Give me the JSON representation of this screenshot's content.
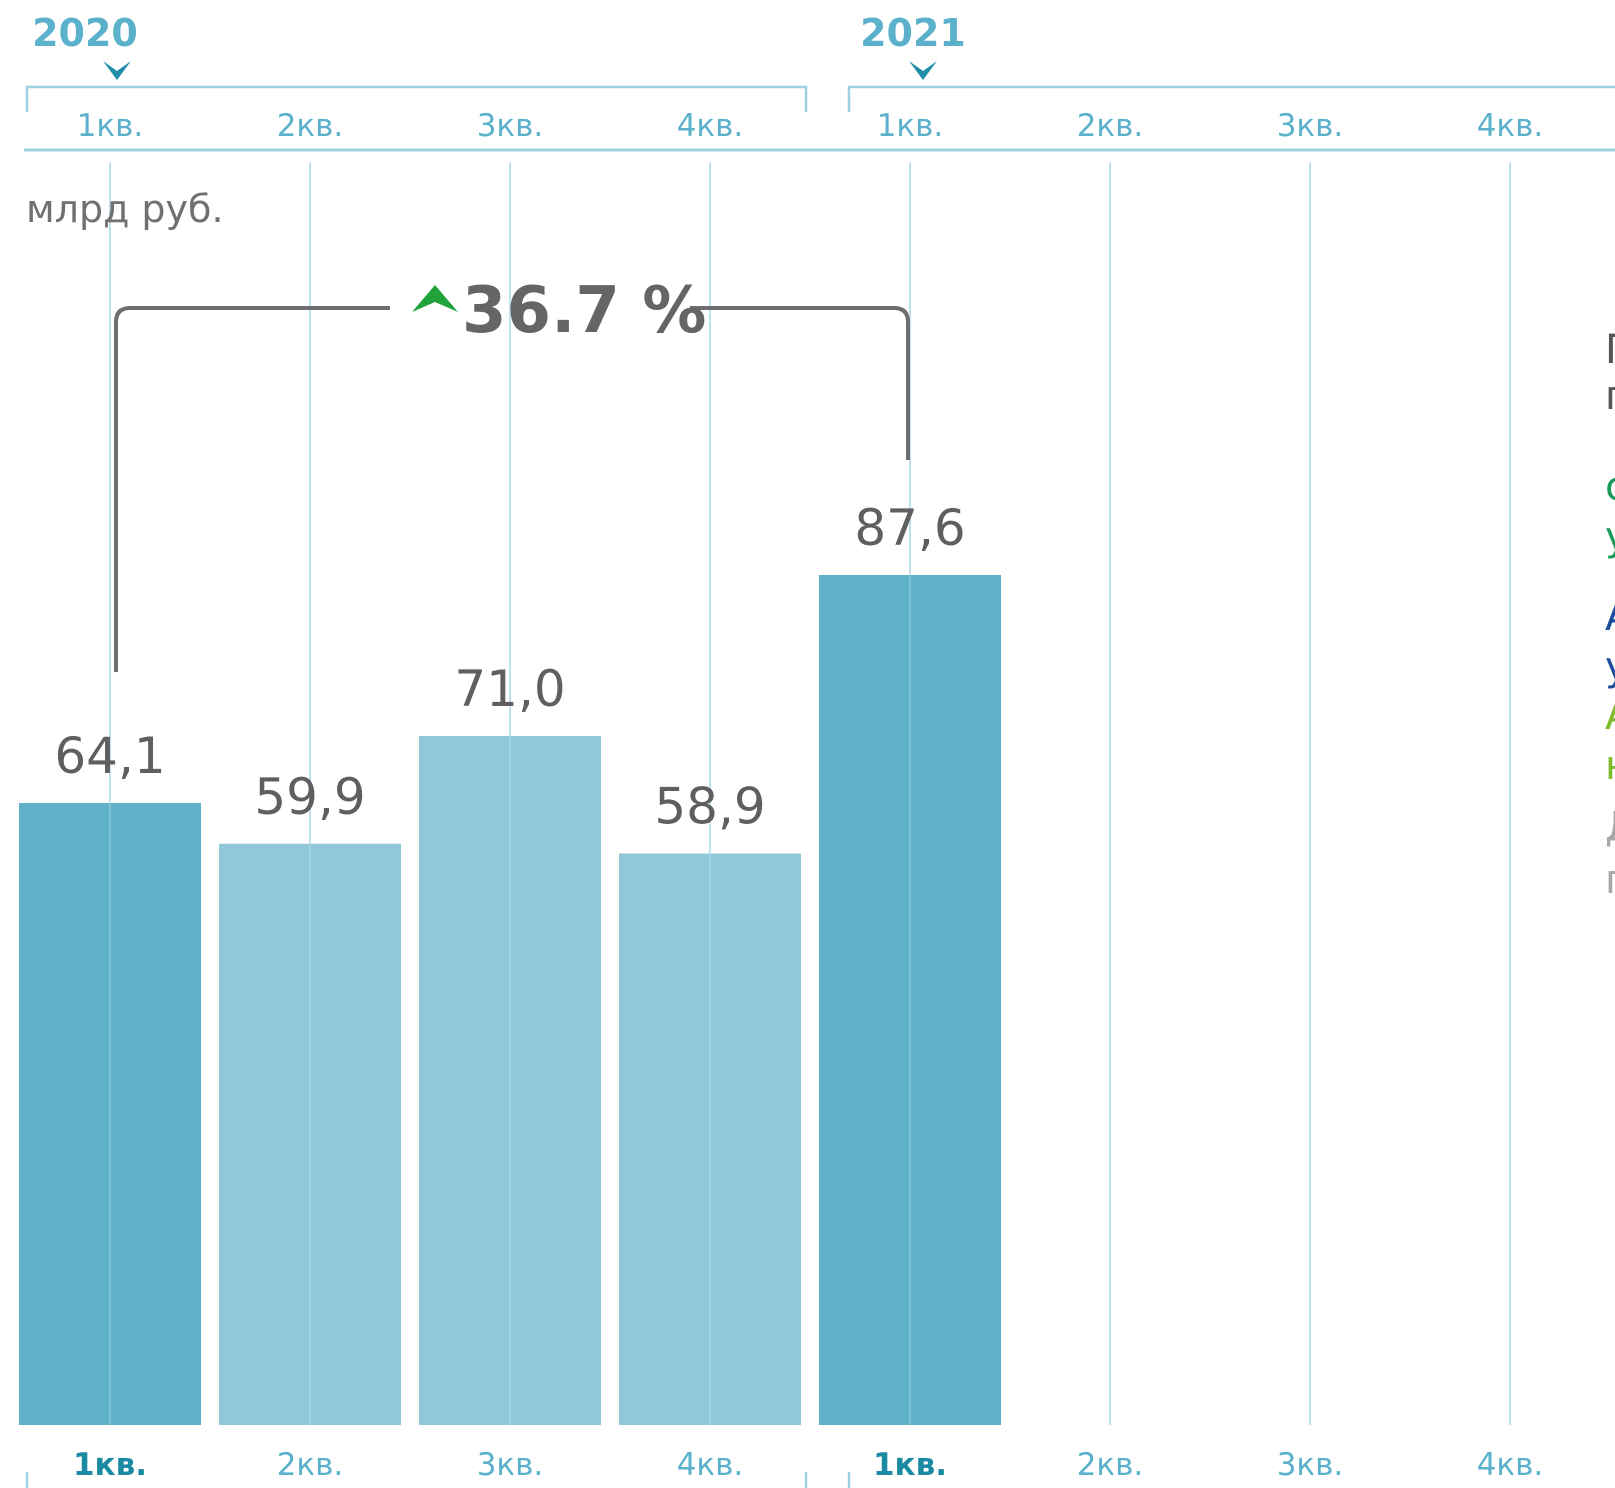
{
  "chart_data": {
    "type": "bar",
    "unit_label": "млрд руб.",
    "years": [
      "2020",
      "2021"
    ],
    "quarter_labels": [
      "1кв.",
      "2кв.",
      "3кв.",
      "4кв.",
      "1кв.",
      "2кв.",
      "3кв.",
      "4кв."
    ],
    "categories": [
      "1кв. 2020",
      "2кв. 2020",
      "3кв. 2020",
      "4кв. 2020",
      "1кв. 2021"
    ],
    "values": [
      64.1,
      59.9,
      71.0,
      58.9,
      87.6
    ],
    "value_labels": [
      "64,1",
      "59,9",
      "71,0",
      "58,9",
      "87,6"
    ],
    "bar_colors": [
      "#5fb1ca",
      "#90c8da",
      "#90c8da",
      "#90c8da",
      "#5fb1ca"
    ],
    "growth_label": "36.7 %",
    "growth_direction": "up",
    "growth_arrow_color": "#22a33a",
    "highlighted_quarter_labels": [
      0,
      4
    ],
    "grid_color": "#bfe2ec",
    "ylim": [
      0,
      87.6
    ]
  },
  "side_panel": {
    "fragments": [
      {
        "text": "Г",
        "color": "#555555"
      },
      {
        "text": "г",
        "color": "#555555"
      },
      {
        "text": "с",
        "color": "#1a9b5a"
      },
      {
        "text": "у",
        "color": "#1a9b5a"
      },
      {
        "text": "А",
        "color": "#1c4e9c"
      },
      {
        "text": "у",
        "color": "#1c4e9c"
      },
      {
        "text": "А",
        "color": "#7dbb2c"
      },
      {
        "text": "н",
        "color": "#7dbb2c"
      },
      {
        "text": "Д",
        "color": "#a8a8a8"
      },
      {
        "text": "п",
        "color": "#a8a8a8"
      }
    ]
  }
}
